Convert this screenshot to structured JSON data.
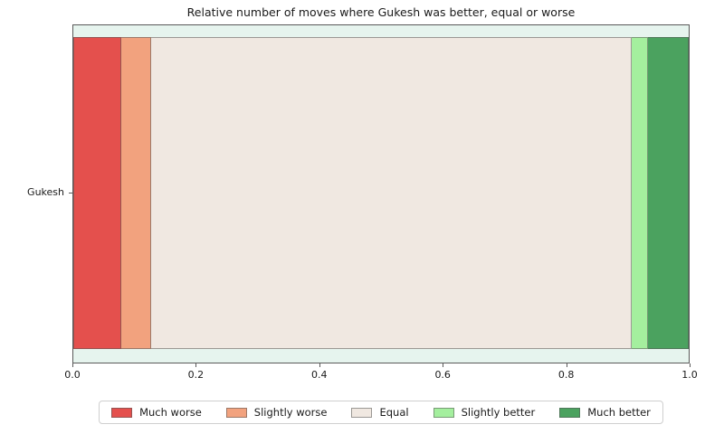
{
  "chart_data": {
    "type": "bar",
    "orientation": "horizontal",
    "stacked": true,
    "title": "Relative number of moves where Gukesh was better, equal or worse",
    "categories": [
      "Gukesh"
    ],
    "series": [
      {
        "name": "Much worse",
        "values": [
          0.078
        ],
        "color": "#e4504d"
      },
      {
        "name": "Slightly worse",
        "values": [
          0.048
        ],
        "color": "#f2a27e"
      },
      {
        "name": "Equal",
        "values": [
          0.782
        ],
        "color": "#f0e8e1"
      },
      {
        "name": "Slightly better",
        "values": [
          0.026
        ],
        "color": "#a4ef9e"
      },
      {
        "name": "Much better",
        "values": [
          0.066
        ],
        "color": "#4ba25f"
      }
    ],
    "xlim": [
      0.0,
      1.0
    ],
    "x_ticks": [
      "0.0",
      "0.2",
      "0.4",
      "0.6",
      "0.8",
      "1.0"
    ],
    "xlabel": "",
    "ylabel": "",
    "grid": false,
    "legend_position": "bottom",
    "plot_background": "#e6f4ee",
    "spine_color": "#595959"
  }
}
